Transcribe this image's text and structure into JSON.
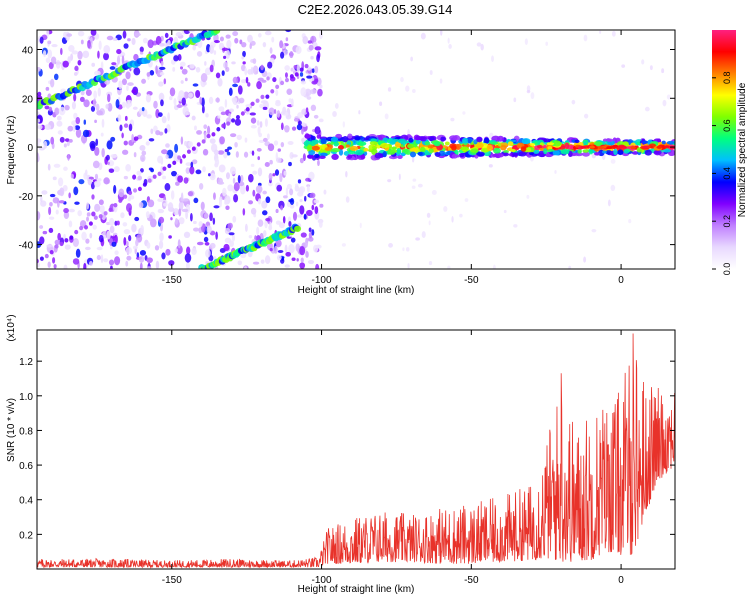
{
  "title": "C2E2.2026.043.05.39.G14",
  "chart_data": [
    {
      "type": "heatmap",
      "name": "spectrogram",
      "xlabel": "Height of straight line (km)",
      "ylabel": "Frequency (Hz)",
      "xlim": [
        -195,
        18
      ],
      "ylim": [
        -50,
        48
      ],
      "xticks": [
        -150,
        -100,
        -50,
        0
      ],
      "xtick_labels": [
        "-150",
        "-100",
        "-50",
        "0"
      ],
      "yticks": [
        -40,
        -20,
        0,
        20,
        40
      ],
      "ytick_labels": [
        "-40",
        "-20",
        "0",
        "20",
        "40"
      ],
      "colorbar": {
        "label": "Normalized spectral amplitude",
        "range": [
          0,
          1
        ],
        "ticks": [
          0.0,
          0.2,
          0.4,
          0.6,
          0.8
        ],
        "tick_labels": [
          "0.0",
          "0.2",
          "0.4",
          "0.6",
          "0.8"
        ],
        "stops": [
          "#ffffff",
          "#e8d8ff",
          "#c080ff",
          "#8000ff",
          "#0000ff",
          "#00bfff",
          "#00ff80",
          "#80ff00",
          "#ffff00",
          "#ff8000",
          "#ff0000",
          "#ff2080"
        ]
      },
      "features": [
        {
          "name": "main-signal-band",
          "x": [
            -105,
            18
          ],
          "freq_center": 0,
          "half_width_hz": 4,
          "peak_amplitude": 0.95
        },
        {
          "name": "diagonal-trace-upper",
          "x_start": -195,
          "freq_start": 17,
          "x_end": -135,
          "freq_end": 48
        },
        {
          "name": "diagonal-trace-lower",
          "x_start": -140,
          "freq_start": -50,
          "x_end": -108,
          "freq_end": -33
        },
        {
          "name": "diagonal-trace-faint",
          "x_start": -195,
          "freq_start": -47,
          "x_end": -105,
          "freq_end": 33
        }
      ],
      "noise_region_x": [
        -195,
        -100
      ]
    },
    {
      "type": "line",
      "name": "snr",
      "xlabel": "Height of straight line (km)",
      "ylabel": "SNR (10 * v/v)",
      "multiplier_label": "(x10⁴)",
      "xlim": [
        -195,
        18
      ],
      "ylim": [
        0,
        1.38
      ],
      "xticks": [
        -150,
        -100,
        -50,
        0
      ],
      "xtick_labels": [
        "-150",
        "-100",
        "-50",
        "0"
      ],
      "yticks": [
        0.2,
        0.4,
        0.6,
        0.8,
        1.0,
        1.2
      ],
      "ytick_labels": [
        "0.2",
        "0.4",
        "0.6",
        "0.8",
        "1.0",
        "1.2"
      ],
      "color": "#e8322a",
      "envelope": {
        "x": [
          -195,
          -170,
          -150,
          -130,
          -110,
          -101,
          -98,
          -90,
          -80,
          -70,
          -60,
          -50,
          -40,
          -30,
          -25,
          -20,
          -15,
          -10,
          -5,
          0,
          4,
          8,
          12,
          18
        ],
        "min": [
          0.01,
          0.01,
          0.01,
          0.01,
          0.01,
          0.01,
          0.03,
          0.03,
          0.04,
          0.04,
          0.03,
          0.03,
          0.04,
          0.05,
          0.06,
          0.04,
          0.04,
          0.05,
          0.1,
          0.08,
          0.08,
          0.3,
          0.5,
          0.6
        ],
        "max": [
          0.06,
          0.06,
          0.05,
          0.06,
          0.05,
          0.07,
          0.24,
          0.3,
          0.34,
          0.32,
          0.36,
          0.38,
          0.42,
          0.5,
          0.75,
          1.1,
          0.82,
          0.95,
          1.0,
          1.05,
          1.36,
          1.1,
          1.05,
          1.1
        ]
      },
      "notable_peaks": [
        {
          "x": -20,
          "y": 1.13
        },
        {
          "x": 4,
          "y": 1.36
        }
      ]
    }
  ]
}
